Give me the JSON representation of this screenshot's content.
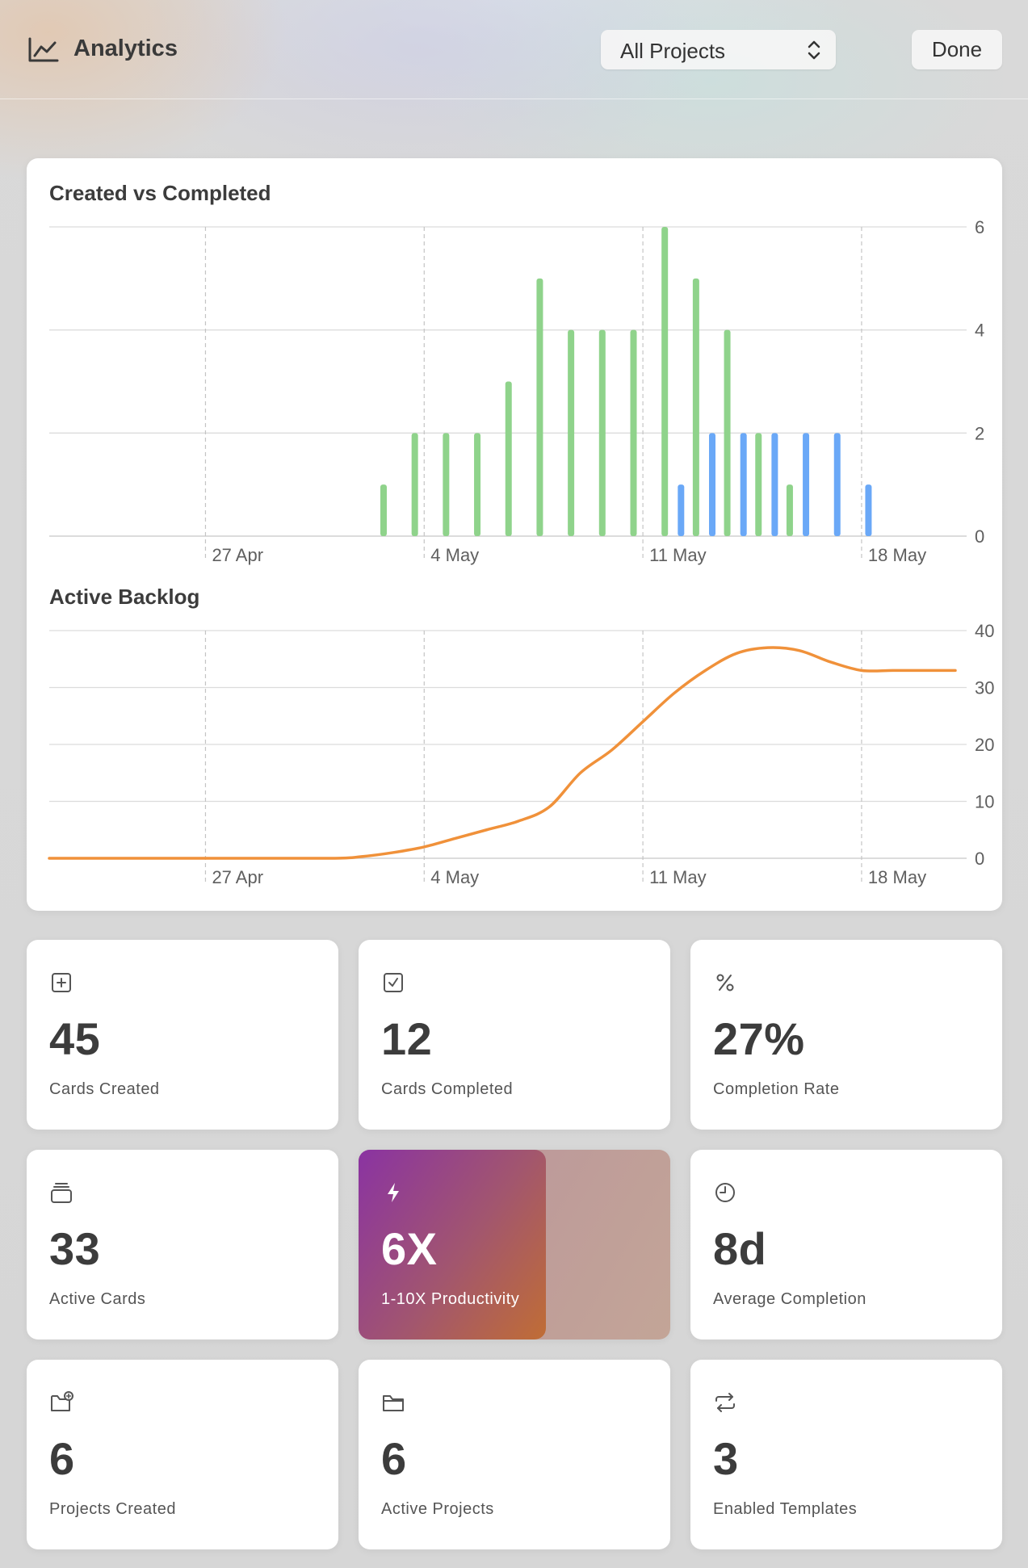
{
  "window": {
    "title": "Analytics",
    "title_icon": "line-chart-icon"
  },
  "toolbar": {
    "project_filter": {
      "selected": "All Projects",
      "icon": "up-down-chevron-icon"
    },
    "done_label": "Done"
  },
  "charts": {
    "created_vs_completed": {
      "title": "Created vs Completed"
    },
    "active_backlog": {
      "title": "Active Backlog"
    }
  },
  "chart_data": [
    {
      "type": "bar",
      "title": "Created vs Completed",
      "x_unit": "date",
      "x_start": "2026-04-22",
      "x_end": "2026-05-21",
      "xticks": [
        "27 Apr",
        "4 May",
        "11 May",
        "18 May"
      ],
      "ylim": [
        0,
        6
      ],
      "yticks": [
        0,
        2,
        4,
        6
      ],
      "y_axis_side": "right",
      "grid": true,
      "series": [
        {
          "color": "#8fd38b",
          "points": [
            [
              "2026-05-03",
              1
            ],
            [
              "2026-05-04",
              2
            ],
            [
              "2026-05-05",
              2
            ],
            [
              "2026-05-06",
              2
            ],
            [
              "2026-05-07",
              3
            ],
            [
              "2026-05-08",
              5
            ],
            [
              "2026-05-09",
              4
            ],
            [
              "2026-05-10",
              4
            ],
            [
              "2026-05-11",
              4
            ],
            [
              "2026-05-12",
              6
            ],
            [
              "2026-05-13",
              5
            ],
            [
              "2026-05-14",
              4
            ],
            [
              "2026-05-15",
              2
            ],
            [
              "2026-05-16",
              1
            ]
          ]
        },
        {
          "color": "#6aa8f7",
          "points": [
            [
              "2026-05-12",
              1
            ],
            [
              "2026-05-13",
              2
            ],
            [
              "2026-05-14",
              2
            ],
            [
              "2026-05-15",
              2
            ],
            [
              "2026-05-16",
              2
            ],
            [
              "2026-05-17",
              2
            ],
            [
              "2026-05-18",
              1
            ]
          ]
        }
      ]
    },
    {
      "type": "line",
      "title": "Active Backlog",
      "x_unit": "date",
      "x_start": "2026-04-22",
      "x_end": "2026-05-21",
      "xticks": [
        "27 Apr",
        "4 May",
        "11 May",
        "18 May"
      ],
      "ylim": [
        0,
        40
      ],
      "yticks": [
        0,
        10,
        20,
        30,
        40
      ],
      "y_axis_side": "right",
      "grid": true,
      "series": [
        {
          "color": "#f0913a",
          "points": [
            [
              "2026-04-22",
              0
            ],
            [
              "2026-04-27",
              0
            ],
            [
              "2026-05-01",
              0
            ],
            [
              "2026-05-02",
              0.3
            ],
            [
              "2026-05-03",
              1
            ],
            [
              "2026-05-04",
              2
            ],
            [
              "2026-05-05",
              3.5
            ],
            [
              "2026-05-06",
              5
            ],
            [
              "2026-05-07",
              6.5
            ],
            [
              "2026-05-08",
              9
            ],
            [
              "2026-05-09",
              15
            ],
            [
              "2026-05-10",
              19
            ],
            [
              "2026-05-11",
              24
            ],
            [
              "2026-05-12",
              29
            ],
            [
              "2026-05-13",
              33
            ],
            [
              "2026-05-14",
              36
            ],
            [
              "2026-05-15",
              37
            ],
            [
              "2026-05-16",
              36.5
            ],
            [
              "2026-05-17",
              34.5
            ],
            [
              "2026-05-18",
              33
            ],
            [
              "2026-05-19",
              33
            ],
            [
              "2026-05-20",
              33
            ],
            [
              "2026-05-21",
              33
            ]
          ]
        }
      ]
    }
  ],
  "stats": [
    {
      "value": "45",
      "label": "Cards Created",
      "icon": "plus-square-icon"
    },
    {
      "value": "12",
      "label": "Cards Completed",
      "icon": "checkmark-square-icon"
    },
    {
      "value": "27%",
      "label": "Completion Rate",
      "icon": "percent-icon"
    },
    {
      "value": "33",
      "label": "Active Cards",
      "icon": "card-stack-icon"
    },
    {
      "value": "6X",
      "label": "1-10X Productivity",
      "icon": "bolt-icon",
      "level": 0.6,
      "gradient": [
        "#8a33a2",
        "#c06d35"
      ]
    },
    {
      "value": "8d",
      "label": "Average Completion",
      "icon": "clock-icon"
    },
    {
      "value": "6",
      "label": "Projects Created",
      "icon": "folder-plus-icon"
    },
    {
      "value": "6",
      "label": "Active Projects",
      "icon": "folder-icon"
    },
    {
      "value": "3",
      "label": "Enabled Templates",
      "icon": "repeat-icon"
    }
  ]
}
